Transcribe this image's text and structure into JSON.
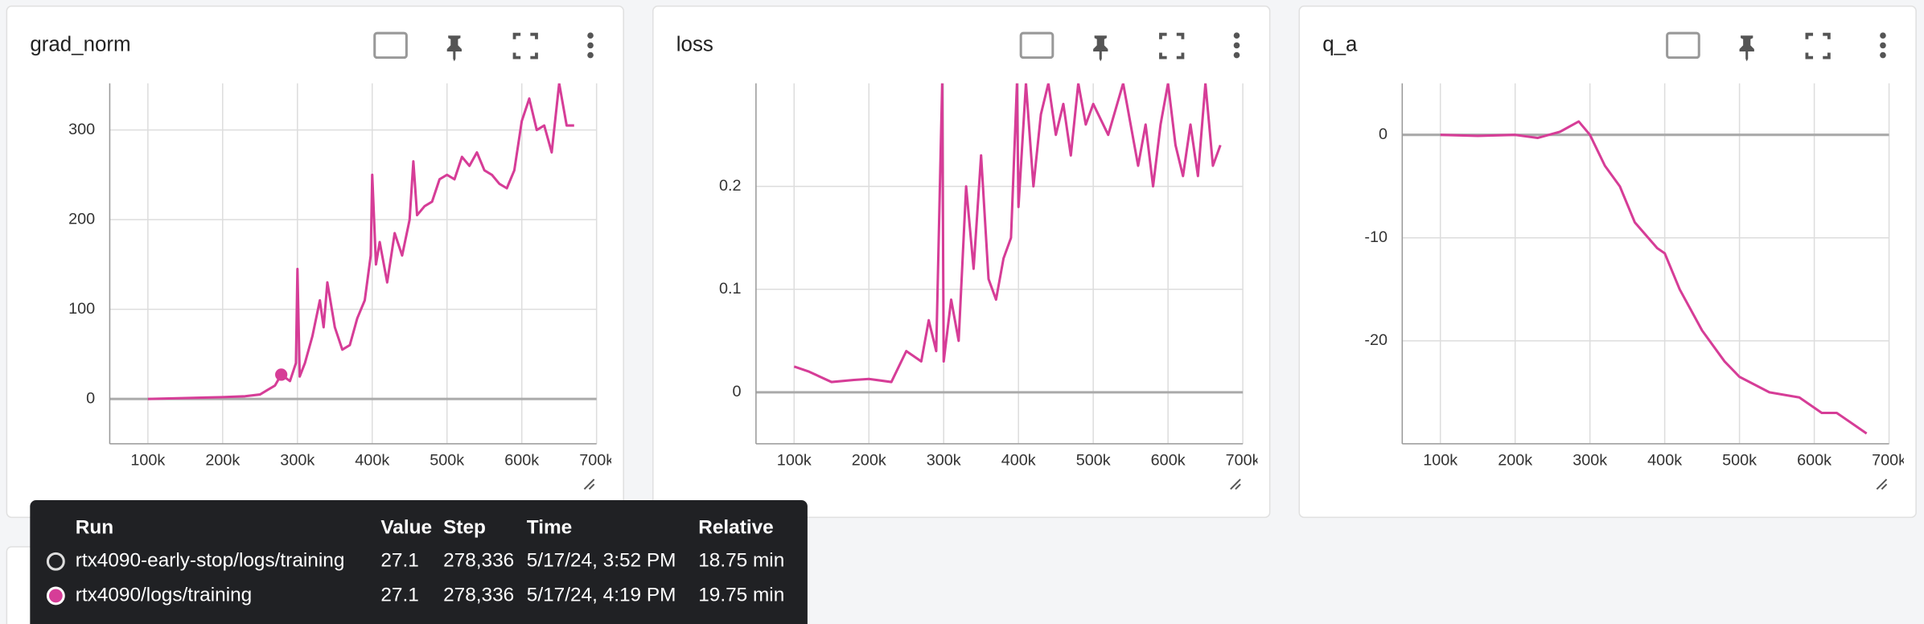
{
  "chart_data": [
    {
      "type": "line",
      "title": "grad_norm",
      "color": "#d63d97",
      "grid": true,
      "x": [
        100000,
        150000,
        200000,
        230000,
        250000,
        260000,
        270000,
        278336,
        290000,
        298000,
        300000,
        303000,
        310000,
        320000,
        330000,
        335000,
        340000,
        350000,
        360000,
        370000,
        380000,
        390000,
        398000,
        400000,
        405000,
        410000,
        420000,
        430000,
        440000,
        450000,
        455000,
        460000,
        470000,
        480000,
        490000,
        500000,
        510000,
        520000,
        530000,
        540000,
        550000,
        560000,
        570000,
        580000,
        590000,
        600000,
        610000,
        620000,
        630000,
        640000,
        650000,
        660000,
        670000
      ],
      "values": [
        0,
        1,
        2,
        3,
        5,
        10,
        15,
        27.1,
        20,
        40,
        145,
        25,
        40,
        70,
        110,
        80,
        130,
        80,
        55,
        60,
        90,
        110,
        160,
        250,
        150,
        175,
        130,
        185,
        160,
        200,
        265,
        205,
        215,
        220,
        245,
        250,
        245,
        270,
        260,
        275,
        255,
        250,
        240,
        235,
        255,
        310,
        335,
        300,
        305,
        275,
        352,
        305,
        305
      ],
      "xlim": [
        49000,
        700000
      ],
      "ylim": [
        -50,
        352
      ],
      "xticks": [
        {
          "value": 100000,
          "label": "100k"
        },
        {
          "value": 200000,
          "label": "200k"
        },
        {
          "value": 300000,
          "label": "300k"
        },
        {
          "value": 400000,
          "label": "400k"
        },
        {
          "value": 500000,
          "label": "500k"
        },
        {
          "value": 600000,
          "label": "600k"
        },
        {
          "value": 700000,
          "label": "700k"
        }
      ],
      "yticks": [
        0,
        100,
        200,
        300
      ]
    },
    {
      "type": "line",
      "title": "loss",
      "color": "#d63d97",
      "grid": true,
      "x": [
        100000,
        120000,
        150000,
        180000,
        200000,
        230000,
        250000,
        270000,
        280000,
        290000,
        298000,
        300000,
        310000,
        320000,
        330000,
        340000,
        350000,
        360000,
        370000,
        380000,
        390000,
        398000,
        400000,
        410000,
        420000,
        430000,
        440000,
        450000,
        460000,
        470000,
        480000,
        490000,
        500000,
        520000,
        540000,
        560000,
        570000,
        580000,
        590000,
        600000,
        610000,
        620000,
        630000,
        640000,
        650000,
        660000,
        670000
      ],
      "values": [
        0.025,
        0.02,
        0.01,
        0.012,
        0.013,
        0.01,
        0.04,
        0.03,
        0.07,
        0.04,
        0.3,
        0.03,
        0.09,
        0.05,
        0.2,
        0.12,
        0.23,
        0.11,
        0.09,
        0.13,
        0.15,
        0.3,
        0.18,
        0.3,
        0.2,
        0.27,
        0.3,
        0.25,
        0.28,
        0.23,
        0.3,
        0.26,
        0.28,
        0.25,
        0.3,
        0.22,
        0.26,
        0.2,
        0.26,
        0.3,
        0.24,
        0.21,
        0.26,
        0.21,
        0.3,
        0.22,
        0.24
      ],
      "xlim": [
        49000,
        700000
      ],
      "ylim": [
        -0.05,
        0.3
      ],
      "xticks": [
        {
          "value": 100000,
          "label": "100k"
        },
        {
          "value": 200000,
          "label": "200k"
        },
        {
          "value": 300000,
          "label": "300k"
        },
        {
          "value": 400000,
          "label": "400k"
        },
        {
          "value": 500000,
          "label": "500k"
        },
        {
          "value": 600000,
          "label": "600k"
        },
        {
          "value": 700000,
          "label": "700k"
        }
      ],
      "yticks": [
        0,
        0.1,
        0.2
      ]
    },
    {
      "type": "line",
      "title": "q_a",
      "color": "#d63d97",
      "grid": true,
      "x": [
        100000,
        150000,
        200000,
        230000,
        260000,
        285000,
        300000,
        320000,
        340000,
        360000,
        390000,
        400000,
        420000,
        450000,
        480000,
        500000,
        540000,
        580000,
        610000,
        630000,
        650000,
        670000
      ],
      "values": [
        0,
        -0.1,
        0,
        -0.3,
        0.3,
        1.3,
        0,
        -3,
        -5,
        -8.5,
        -11,
        -11.5,
        -15,
        -19,
        -22,
        -23.5,
        -25,
        -25.5,
        -27,
        -27,
        -28,
        -29
      ],
      "xlim": [
        49000,
        700000
      ],
      "ylim": [
        -30,
        5
      ],
      "xticks": [
        {
          "value": 100000,
          "label": "100k"
        },
        {
          "value": 200000,
          "label": "200k"
        },
        {
          "value": 300000,
          "label": "300k"
        },
        {
          "value": 400000,
          "label": "400k"
        },
        {
          "value": 500000,
          "label": "500k"
        },
        {
          "value": 600000,
          "label": "600k"
        },
        {
          "value": 700000,
          "label": "700k"
        }
      ],
      "yticks": [
        0,
        -10,
        -20
      ]
    }
  ],
  "tooltip": {
    "columns": [
      "Run",
      "Value",
      "Step",
      "Time",
      "Relative"
    ],
    "rows": [
      [
        "rtx4090-early-stop/logs/training",
        "27.1",
        "278,336",
        "5/17/24, 3:52 PM",
        "18.75 min"
      ],
      [
        "rtx4090/logs/training",
        "27.1",
        "278,336",
        "5/17/24, 4:19 PM",
        "19.75 min"
      ]
    ]
  }
}
